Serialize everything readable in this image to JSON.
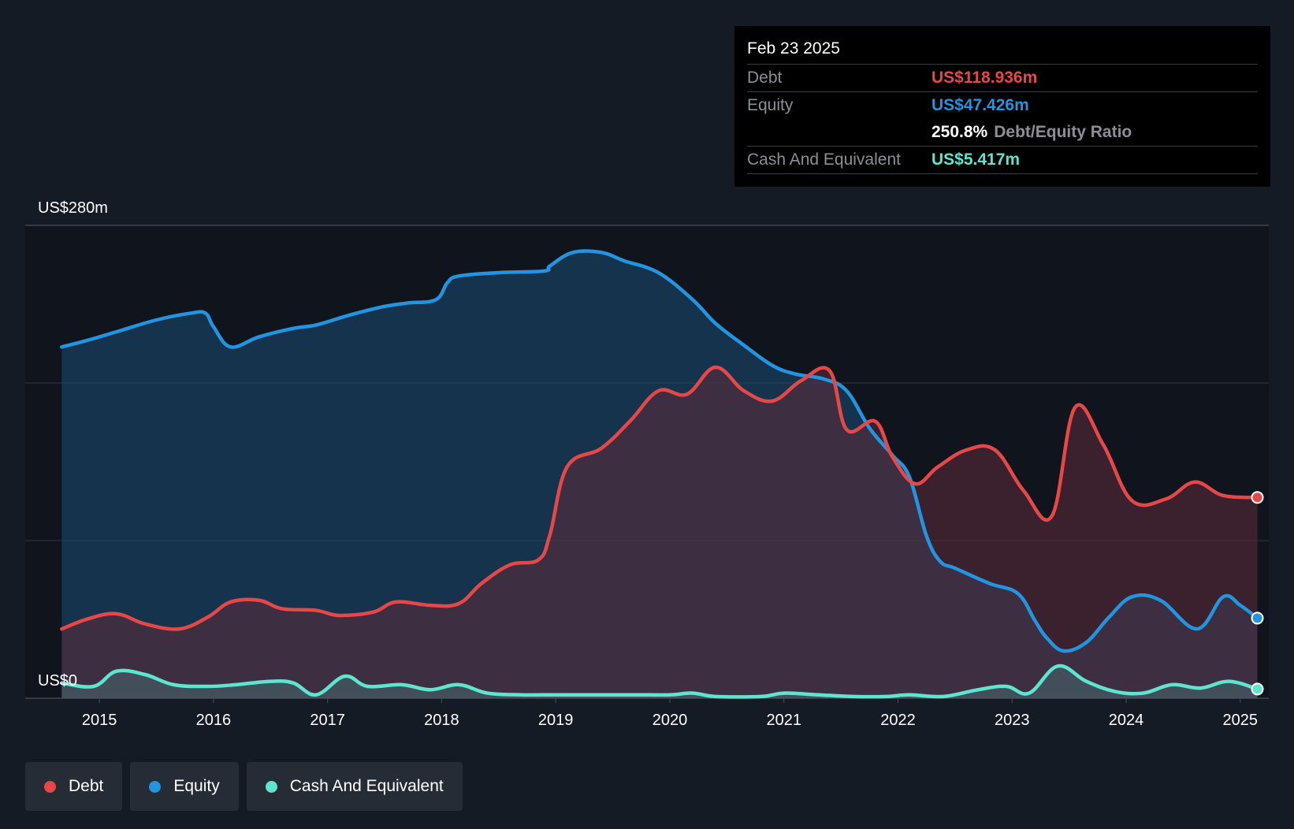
{
  "chart_data": {
    "type": "area",
    "title": "",
    "ylabel": "",
    "xlabel": "",
    "ylim": [
      0,
      280
    ],
    "y_axis_labels": {
      "top": "US$280m",
      "bottom": "US$0"
    },
    "x_ticks": [
      "2015",
      "2016",
      "2017",
      "2018",
      "2019",
      "2020",
      "2021",
      "2022",
      "2023",
      "2024",
      "2025"
    ],
    "x_tick_values": [
      2015,
      2016,
      2017,
      2018,
      2019,
      2020,
      2021,
      2022,
      2023,
      2024,
      2025
    ],
    "xlim": [
      2014.35,
      2025.25
    ],
    "series": [
      {
        "name": "Equity",
        "color": "#2394df",
        "x": [
          2014.67,
          2014.9,
          2015.2,
          2015.5,
          2015.8,
          2015.93,
          2016.0,
          2016.15,
          2016.4,
          2016.7,
          2016.9,
          2017.2,
          2017.5,
          2017.7,
          2017.95,
          2018.05,
          2018.15,
          2018.5,
          2018.9,
          2018.95,
          2019.15,
          2019.4,
          2019.6,
          2019.9,
          2020.2,
          2020.4,
          2020.65,
          2020.9,
          2021.1,
          2021.35,
          2021.55,
          2021.75,
          2021.95,
          2022.1,
          2022.25,
          2022.37,
          2022.5,
          2022.8,
          2023.05,
          2023.2,
          2023.3,
          2023.45,
          2023.65,
          2023.85,
          2024.05,
          2024.3,
          2024.62,
          2024.85,
          2025.0,
          2025.15
        ],
        "values": [
          208,
          212,
          218,
          224,
          228,
          228,
          220,
          208,
          214,
          219,
          221,
          227,
          232,
          234,
          236,
          246,
          250,
          252,
          253,
          256,
          264,
          264,
          259,
          252,
          236,
          222,
          209,
          197,
          192,
          189,
          182,
          160,
          144,
          131,
          96,
          81,
          77,
          68,
          62,
          46,
          36,
          28,
          33,
          48,
          60,
          58,
          41,
          60,
          55,
          47.4
        ]
      },
      {
        "name": "Debt",
        "color": "#e64848",
        "x": [
          2014.67,
          2014.9,
          2015.15,
          2015.4,
          2015.7,
          2015.95,
          2016.15,
          2016.4,
          2016.6,
          2016.9,
          2017.1,
          2017.4,
          2017.6,
          2017.9,
          2018.15,
          2018.35,
          2018.6,
          2018.85,
          2018.95,
          2019.1,
          2019.4,
          2019.65,
          2019.9,
          2020.15,
          2020.4,
          2020.65,
          2020.9,
          2021.15,
          2021.4,
          2021.55,
          2021.8,
          2021.95,
          2022.15,
          2022.35,
          2022.6,
          2022.85,
          2023.1,
          2023.35,
          2023.55,
          2023.8,
          2024.05,
          2024.35,
          2024.6,
          2024.85,
          2025.15
        ],
        "values": [
          41,
          47,
          50,
          44,
          41,
          48,
          57,
          58,
          53,
          52,
          49,
          51,
          57,
          55,
          56,
          68,
          79,
          82,
          97,
          137,
          148,
          164,
          182,
          180,
          196,
          182,
          176,
          188,
          194,
          159,
          164,
          143,
          127,
          137,
          147,
          147,
          123,
          108,
          172,
          150,
          117,
          118,
          128,
          120,
          118.9
        ]
      },
      {
        "name": "Cash And Equivalent",
        "color": "#5ee5cf",
        "x": [
          2014.67,
          2014.95,
          2015.15,
          2015.4,
          2015.65,
          2015.95,
          2016.2,
          2016.5,
          2016.7,
          2016.9,
          2017.15,
          2017.35,
          2017.65,
          2017.9,
          2018.15,
          2018.4,
          2018.7,
          2019.0,
          2019.4,
          2019.7,
          2020.0,
          2020.2,
          2020.4,
          2020.8,
          2021.0,
          2021.3,
          2021.6,
          2021.9,
          2022.1,
          2022.4,
          2022.7,
          2022.95,
          2023.15,
          2023.4,
          2023.65,
          2023.9,
          2024.15,
          2024.4,
          2024.65,
          2024.9,
          2025.15
        ],
        "values": [
          9,
          7,
          16,
          14,
          8,
          7,
          8,
          10,
          9,
          2,
          13,
          7,
          8,
          5,
          8,
          3,
          2,
          2,
          2,
          2,
          2,
          3,
          1,
          1,
          3,
          2,
          1,
          1,
          2,
          1,
          5,
          7,
          3,
          19,
          10,
          4,
          3,
          8,
          6,
          10,
          5.4
        ]
      }
    ],
    "tooltip": {
      "date": "Feb 23 2025",
      "debt_label": "Debt",
      "debt_value": "US$118.936m",
      "equity_label": "Equity",
      "equity_value": "US$47.426m",
      "ratio_value": "250.8%",
      "ratio_label": "Debt/Equity Ratio",
      "cash_label": "Cash And Equivalent",
      "cash_value": "US$5.417m"
    },
    "legend": [
      {
        "label": "Debt",
        "color": "#e64848"
      },
      {
        "label": "Equity",
        "color": "#2394df"
      },
      {
        "label": "Cash And Equivalent",
        "color": "#5ee5cf"
      }
    ],
    "legend_position": "bottom-left"
  }
}
